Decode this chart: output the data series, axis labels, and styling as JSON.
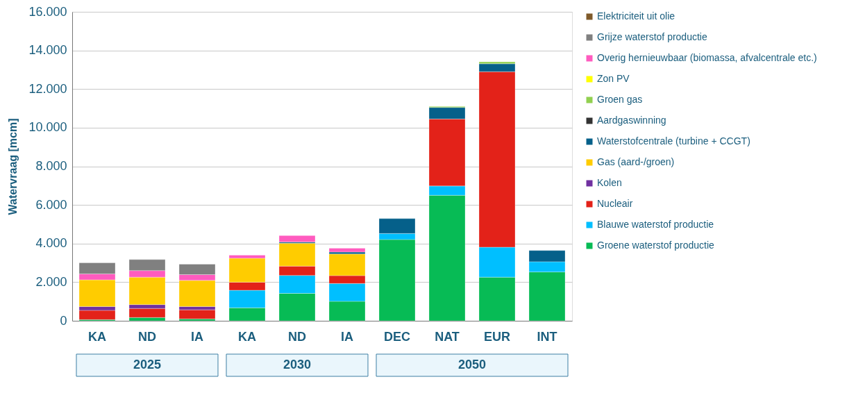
{
  "chart_data": {
    "type": "bar",
    "stacked": true,
    "ylabel": "Watervraag [mcm]",
    "categories": [
      "KA",
      "ND",
      "IA",
      "KA",
      "ND",
      "IA",
      "DEC",
      "NAT",
      "EUR",
      "INT"
    ],
    "series": [
      {
        "name": "Groene waterstof productie",
        "color": "#07bb55",
        "values": [
          60,
          170,
          100,
          670,
          1420,
          1010,
          4210,
          6500,
          2260,
          2530
        ]
      },
      {
        "name": "Blauwe waterstof productie",
        "color": "#00bfff",
        "values": [
          null,
          null,
          null,
          910,
          930,
          920,
          310,
          480,
          1550,
          530
        ]
      },
      {
        "name": "Nucleair",
        "color": "#e32219",
        "values": [
          480,
          470,
          470,
          420,
          480,
          410,
          null,
          3470,
          9090,
          null
        ]
      },
      {
        "name": "Kolen",
        "color": "#7030a0",
        "values": [
          200,
          200,
          170,
          null,
          null,
          null,
          null,
          null,
          null,
          null
        ]
      },
      {
        "name": "Gas (aard-/groen)",
        "color": "#ffcc00",
        "values": [
          1380,
          1420,
          1350,
          1240,
          1190,
          1120,
          null,
          null,
          null,
          null
        ]
      },
      {
        "name": "Waterstofcentrale (turbine + CCGT)",
        "color": "#05608a",
        "values": [
          null,
          null,
          null,
          null,
          60,
          100,
          770,
          600,
          410,
          580
        ]
      },
      {
        "name": "Aardgaswinning",
        "color": "#333333",
        "values": [
          null,
          null,
          null,
          null,
          null,
          null,
          null,
          null,
          null,
          null
        ]
      },
      {
        "name": "Groen gas",
        "color": "#92d050",
        "values": [
          null,
          null,
          null,
          null,
          null,
          null,
          null,
          50,
          100,
          null
        ]
      },
      {
        "name": "Zon PV",
        "color": "#ffff00",
        "values": [
          null,
          null,
          null,
          null,
          null,
          null,
          null,
          null,
          null,
          null
        ]
      },
      {
        "name": "Overig hernieuwbaar (biomassa, afvalcentrale etc.)",
        "color": "#ff5bbf",
        "values": [
          310,
          340,
          300,
          160,
          330,
          200,
          null,
          null,
          null,
          null
        ]
      },
      {
        "name": "Grijze waterstof productie",
        "color": "#808080",
        "values": [
          570,
          570,
          540,
          null,
          null,
          null,
          null,
          null,
          null,
          null
        ]
      },
      {
        "name": "Elektriciteit uit olie",
        "color": "#7f5a2a",
        "values": [
          null,
          null,
          null,
          null,
          null,
          null,
          null,
          null,
          null,
          null
        ]
      }
    ],
    "ylim": [
      0,
      16000
    ],
    "yticks": [
      {
        "value": 0,
        "label": "0"
      },
      {
        "value": 2000,
        "label": "2.000"
      },
      {
        "value": 4000,
        "label": "4.000"
      },
      {
        "value": 6000,
        "label": "6.000"
      },
      {
        "value": 8000,
        "label": "8.000"
      },
      {
        "value": 10000,
        "label": "10.000"
      },
      {
        "value": 12000,
        "label": "12.000"
      },
      {
        "value": 14000,
        "label": "14.000"
      },
      {
        "value": 16000,
        "label": "16.000"
      }
    ],
    "grid": "y",
    "legend": "right",
    "annotations": [
      "2025",
      "2030",
      "2050"
    ]
  }
}
